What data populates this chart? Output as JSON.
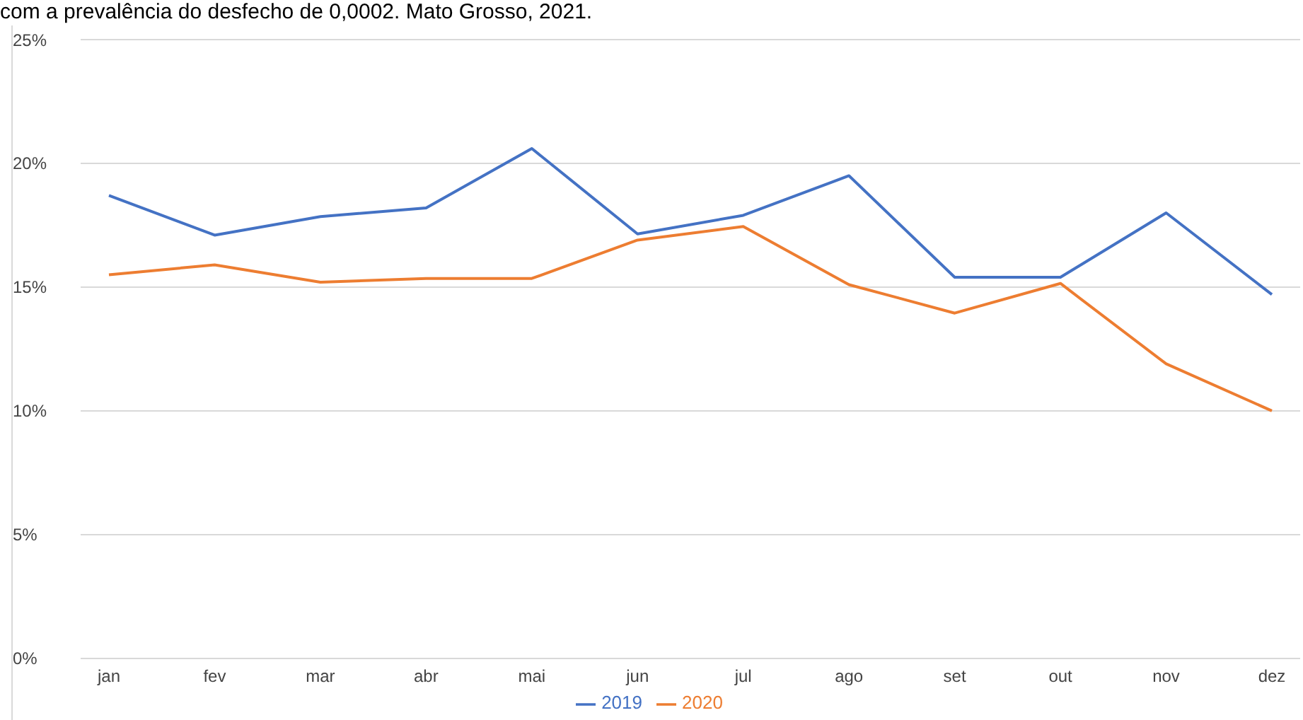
{
  "chart_data": {
    "type": "line",
    "title": "com a prevalência do desfecho de 0,0002. Mato Grosso, 2021.",
    "categories": [
      "jan",
      "fev",
      "mar",
      "abr",
      "mai",
      "jun",
      "jul",
      "ago",
      "set",
      "out",
      "nov",
      "dez"
    ],
    "series": [
      {
        "name": "2019",
        "color": "#4472c4",
        "values": [
          18.7,
          17.1,
          17.85,
          18.2,
          20.6,
          17.15,
          17.9,
          19.5,
          15.4,
          15.4,
          18.0,
          14.7
        ]
      },
      {
        "name": "2020",
        "color": "#ed7d31",
        "values": [
          15.5,
          15.9,
          15.2,
          15.35,
          15.35,
          16.9,
          17.45,
          15.1,
          13.95,
          15.15,
          11.9,
          10.0
        ]
      }
    ],
    "ylim": [
      0,
      25
    ],
    "yticks": [
      {
        "value": 0,
        "label": "0%"
      },
      {
        "value": 5,
        "label": "5%"
      },
      {
        "value": 10,
        "label": "10%"
      },
      {
        "value": 15,
        "label": "15%"
      },
      {
        "value": 20,
        "label": "20%"
      },
      {
        "value": 25,
        "label": "25%"
      }
    ],
    "grid": "y",
    "legend": "bottom",
    "marker": "none",
    "line_style": "solid"
  }
}
